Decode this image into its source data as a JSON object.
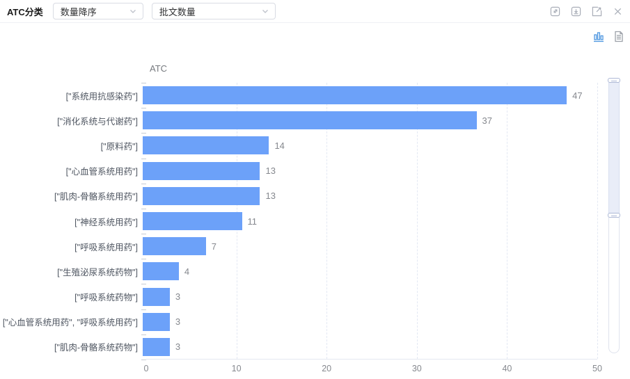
{
  "header": {
    "title": "ATC分类",
    "sort_select": {
      "value": "数量降序"
    },
    "metric_select": {
      "value": "批文数量"
    },
    "icons": [
      "fullscreen-icon",
      "download-icon",
      "external-link-icon",
      "close-icon"
    ]
  },
  "toolbar": {
    "chart_view_icon": "bar-chart-icon",
    "table_view_icon": "document-icon",
    "active_view": "bar-chart"
  },
  "chart_data": {
    "type": "bar",
    "orientation": "horizontal",
    "title": "ATC",
    "categories": [
      "[\"系统用抗感染药\"]",
      "[\"消化系统与代谢药\"]",
      "[\"原料药\"]",
      "[\"心血管系统用药\"]",
      "[\"肌肉-骨骼系统用药\"]",
      "[\"神经系统用药\"]",
      "[\"呼吸系统用药\"]",
      "[\"生殖泌尿系统药物\"]",
      "[\"呼吸系统药物\"]",
      "[\"心血管系统用药\", \"呼吸系统用药\"]",
      "[\"肌肉-骨骼系统药物\"]"
    ],
    "values": [
      47,
      37,
      14,
      13,
      13,
      11,
      7,
      4,
      3,
      3,
      3
    ],
    "xlabel": "",
    "ylabel": "ATC",
    "xlim": [
      0,
      50
    ],
    "x_ticks": [
      0,
      10,
      20,
      30,
      40,
      50
    ],
    "grid": "dashed-vertical",
    "legend": "none",
    "bar_color": "#6CA1F9",
    "value_label_color": "#85888E",
    "category_label_color": "#4E5560",
    "scrollbar": {
      "visible": true,
      "window_fraction": 0.5
    }
  }
}
